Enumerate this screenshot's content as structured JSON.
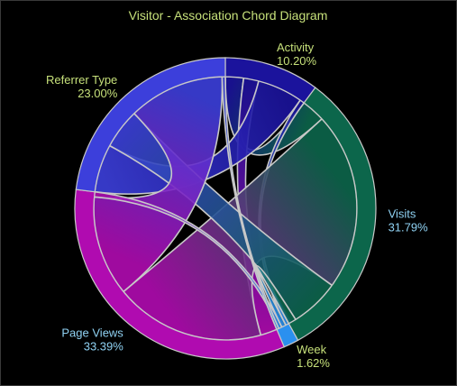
{
  "chart_data": {
    "type": "chord",
    "title": "Visitor - Association Chord Diagram",
    "groups": [
      {
        "name": "Activity",
        "percent": "10.20%",
        "value": 10.2,
        "color": "#1b139c",
        "label_color": "#c6e07a"
      },
      {
        "name": "Visits",
        "percent": "31.79%",
        "value": 31.79,
        "color": "#0c664b",
        "label_color": "#8fd1f2"
      },
      {
        "name": "Week",
        "percent": "1.62%",
        "value": 1.62,
        "color": "#2b90ef",
        "label_color": "#c6e07a"
      },
      {
        "name": "Page Views",
        "percent": "33.39%",
        "value": 33.39,
        "color": "#b00bb0",
        "label_color": "#8fd1f2"
      },
      {
        "name": "Referrer Type",
        "percent": "23.00%",
        "value": 23.0,
        "color": "#3c3fdb",
        "label_color": "#c6e07a"
      }
    ],
    "links": [
      {
        "source": "Activity",
        "target": "Visits",
        "value": 1.2
      },
      {
        "source": "Activity",
        "target": "Page Views",
        "value": 1.0
      },
      {
        "source": "Activity",
        "target": "Referrer Type",
        "value": 3.0
      },
      {
        "source": "Activity",
        "target": "Week",
        "value": 0.3
      },
      {
        "source": "Visits",
        "target": "Page Views",
        "value": 9.0
      },
      {
        "source": "Visits",
        "target": "Referrer Type",
        "value": 2.5
      },
      {
        "source": "Visits",
        "target": "Week",
        "value": 0.4
      },
      {
        "source": "Page Views",
        "target": "Referrer Type",
        "value": 6.0
      },
      {
        "source": "Page Views",
        "target": "Week",
        "value": 0.3
      },
      {
        "source": "Referrer Type",
        "target": "Week",
        "value": 0.2
      }
    ]
  },
  "colors": {
    "background": "#000000",
    "title": "#c6e07a",
    "outline": "#c8c8c8"
  }
}
